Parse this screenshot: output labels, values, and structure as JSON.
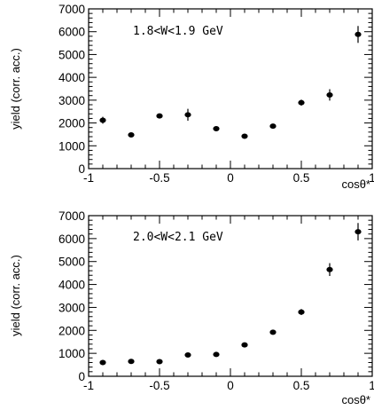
{
  "chart_data": [
    {
      "type": "scatter",
      "annotation": "1.8<W<1.9 GeV",
      "xlabel": "cosθ*",
      "ylabel": "yield (corr. acc.)",
      "xlim": [
        -1,
        1
      ],
      "ylim": [
        0,
        7000
      ],
      "xticks": [
        "-1",
        "-0.5",
        "0",
        "0.5",
        "1"
      ],
      "yticks": [
        "0",
        "1000",
        "2000",
        "3000",
        "4000",
        "5000",
        "6000",
        "7000"
      ],
      "grid": false,
      "legend": "none",
      "marker_color": "#000000",
      "x": [
        -0.9,
        -0.7,
        -0.5,
        -0.3,
        -0.1,
        0.1,
        0.3,
        0.5,
        0.7,
        0.9
      ],
      "y": [
        2120,
        1480,
        2310,
        2360,
        1750,
        1420,
        1860,
        2890,
        3230,
        5880
      ],
      "yerr": [
        150,
        80,
        100,
        260,
        100,
        80,
        90,
        130,
        250,
        370
      ]
    },
    {
      "type": "scatter",
      "annotation": "2.0<W<2.1 GeV",
      "xlabel": "cosθ*",
      "ylabel": "yield (corr. acc.)",
      "xlim": [
        -1,
        1
      ],
      "ylim": [
        0,
        7000
      ],
      "xticks": [
        "-1",
        "-0.5",
        "0",
        "0.5",
        "1"
      ],
      "yticks": [
        "0",
        "1000",
        "2000",
        "3000",
        "4000",
        "5000",
        "6000",
        "7000"
      ],
      "grid": false,
      "legend": "none",
      "marker_color": "#000000",
      "x": [
        -0.9,
        -0.7,
        -0.5,
        -0.3,
        -0.1,
        0.1,
        0.3,
        0.5,
        0.7,
        0.9
      ],
      "y": [
        600,
        650,
        640,
        930,
        950,
        1370,
        1920,
        2800,
        4650,
        6300
      ],
      "yerr": [
        110,
        60,
        60,
        70,
        60,
        90,
        90,
        130,
        280,
        380
      ]
    }
  ]
}
